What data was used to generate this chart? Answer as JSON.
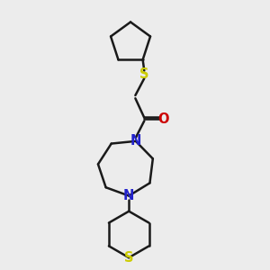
{
  "bg_color": "#ececec",
  "bond_color": "#1a1a1a",
  "S_color": "#cccc00",
  "N_color": "#2222cc",
  "O_color": "#cc0000",
  "bond_width": 1.8,
  "font_size": 10.5,
  "fig_width": 3.0,
  "fig_height": 3.0,
  "dpi": 100,
  "xlim": [
    3.5,
    7.5
  ],
  "ylim": [
    0.8,
    9.8
  ]
}
